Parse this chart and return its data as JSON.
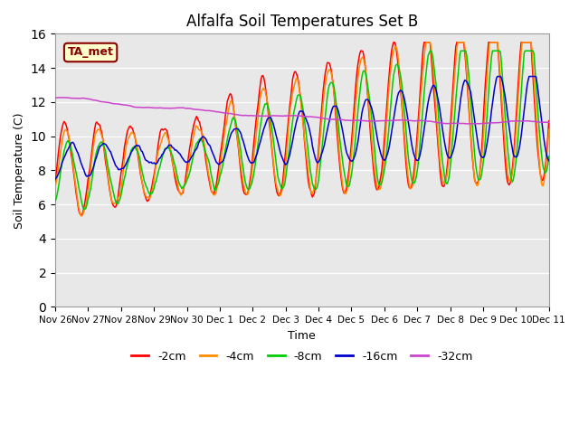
{
  "title": "Alfalfa Soil Temperatures Set B",
  "xlabel": "Time",
  "ylabel": "Soil Temperature (C)",
  "ylim": [
    0,
    16
  ],
  "yticks": [
    0,
    2,
    4,
    6,
    8,
    10,
    12,
    14,
    16
  ],
  "plot_bg": "#e8e8e8",
  "colors": {
    "m2cm": "#ff0000",
    "m4cm": "#ff8c00",
    "m8cm": "#00cc00",
    "m16cm": "#0000cc",
    "m32cm": "#cc44cc"
  },
  "legend_labels": [
    "-2cm",
    "-4cm",
    "-8cm",
    "-16cm",
    "-32cm"
  ],
  "legend_color_keys": [
    "m2cm",
    "m4cm",
    "m8cm",
    "m16cm",
    "m32cm"
  ],
  "annotation": "TA_met",
  "xtick_labels": [
    "Nov 26",
    "Nov 27",
    "Nov 28",
    "Nov 29",
    "Nov 30",
    "Dec 1",
    "Dec 2",
    "Dec 3",
    "Dec 4",
    "Dec 5",
    "Dec 6",
    "Dec 7",
    "Dec 8",
    "Dec 9",
    "Dec 10",
    "Dec 11"
  ],
  "days": 15,
  "num_points": 500
}
